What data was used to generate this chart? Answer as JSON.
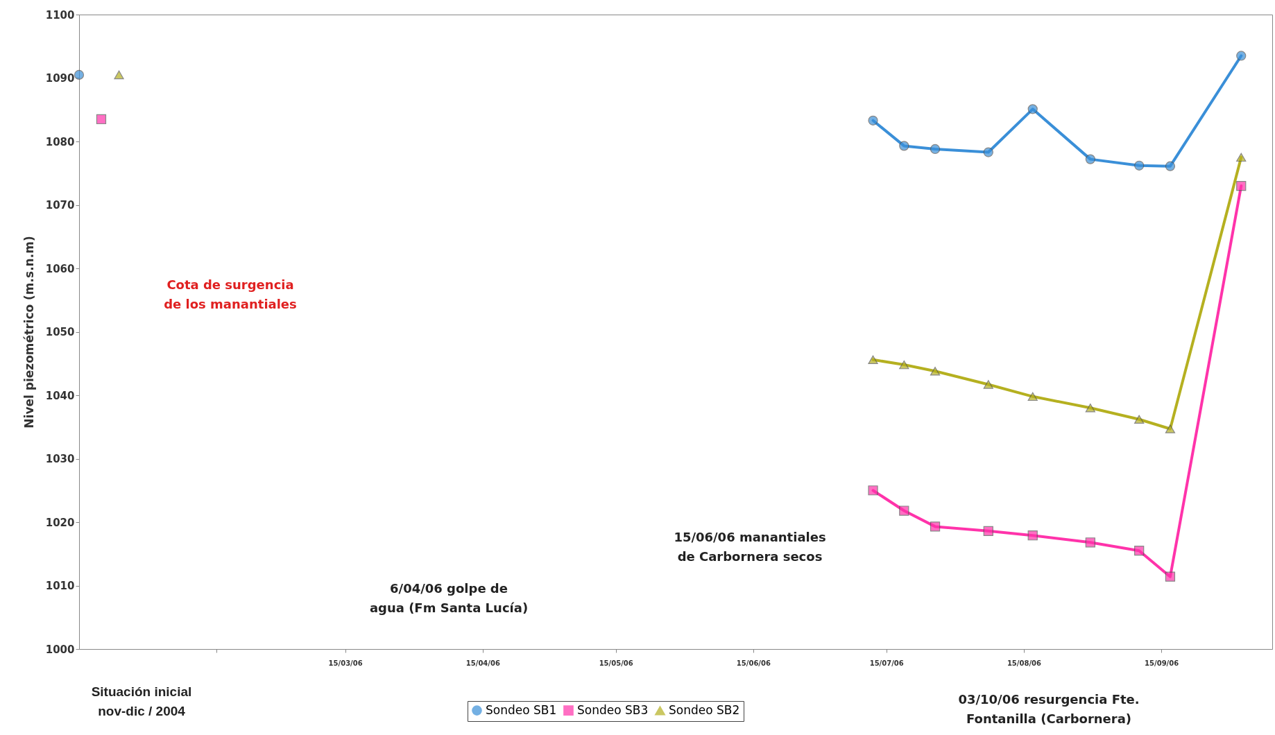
{
  "chart_data": {
    "type": "line",
    "ylabel": "Nivel piezométrico (m.s.n.m)",
    "xlim": [
      "2006-01-14",
      "2006-10-10"
    ],
    "ylim": [
      1000,
      1100
    ],
    "yticks": [
      1000,
      1010,
      1020,
      1030,
      1040,
      1050,
      1060,
      1070,
      1080,
      1090,
      1100
    ],
    "xticks": [
      {
        "value": "2006-02-14",
        "label": null
      },
      {
        "value": "2006-03-15",
        "label": "15/03/06"
      },
      {
        "value": "2006-04-15",
        "label": "15/04/06"
      },
      {
        "value": "2006-05-15",
        "label": "15/05/06"
      },
      {
        "value": "2006-06-15",
        "label": "15/06/06"
      },
      {
        "value": "2006-07-15",
        "label": "15/07/06"
      },
      {
        "value": "2006-08-15",
        "label": "15/08/06"
      },
      {
        "value": "2006-09-15",
        "label": "15/09/06"
      }
    ],
    "legend": "bottom",
    "series": [
      {
        "name": "Sondeo SB1",
        "color": "#3a8fd8",
        "marker": "circle",
        "x": [
          "2006-07-12",
          "2006-07-19",
          "2006-07-26",
          "2006-08-07",
          "2006-08-17",
          "2006-08-30",
          "2006-09-10",
          "2006-09-17",
          "2006-10-03"
        ],
        "values": [
          1083.3,
          1079.3,
          1078.8,
          1078.3,
          1085.1,
          1077.2,
          1076.2,
          1076.1,
          1093.5
        ]
      },
      {
        "name": "Sondeo SB3",
        "color": "#ff33aa",
        "marker": "square",
        "x": [
          "2006-07-12",
          "2006-07-19",
          "2006-07-26",
          "2006-08-07",
          "2006-08-17",
          "2006-08-30",
          "2006-09-10",
          "2006-09-17",
          "2006-10-03"
        ],
        "values": [
          1025.0,
          1021.8,
          1019.3,
          1018.6,
          1017.9,
          1016.8,
          1015.5,
          1011.4,
          1073.0
        ]
      },
      {
        "name": "Sondeo SB2",
        "color": "#b5b020",
        "marker": "triangle",
        "x": [
          "2006-07-12",
          "2006-07-19",
          "2006-07-26",
          "2006-08-07",
          "2006-08-17",
          "2006-08-30",
          "2006-09-10",
          "2006-09-17",
          "2006-10-03"
        ],
        "values": [
          1045.6,
          1044.8,
          1043.8,
          1041.7,
          1039.8,
          1038.0,
          1036.2,
          1034.7,
          1077.5
        ]
      },
      {
        "type": "scatter",
        "color": "#3a8fd8",
        "marker": "circle",
        "x": [
          "2006-01-14"
        ],
        "values": [
          1090.5
        ]
      },
      {
        "type": "scatter",
        "color": "#ff33aa",
        "marker": "square",
        "x": [
          "2006-01-19"
        ],
        "values": [
          1083.5
        ]
      },
      {
        "type": "scatter",
        "color": "#b5b020",
        "marker": "triangle",
        "x": [
          "2006-01-23"
        ],
        "values": [
          1090.5
        ]
      }
    ],
    "annotations": [
      "Situación inicial nov-dic / 2004",
      "Cota de surgencia de los manantiales",
      "6/04/06 golpe de agua (Fm Santa Lucía)",
      "15/06/06 manantiales de Carbornera secos",
      "03/10/06 resurgencia Fte. Fontanilla (Carbornera)"
    ]
  }
}
